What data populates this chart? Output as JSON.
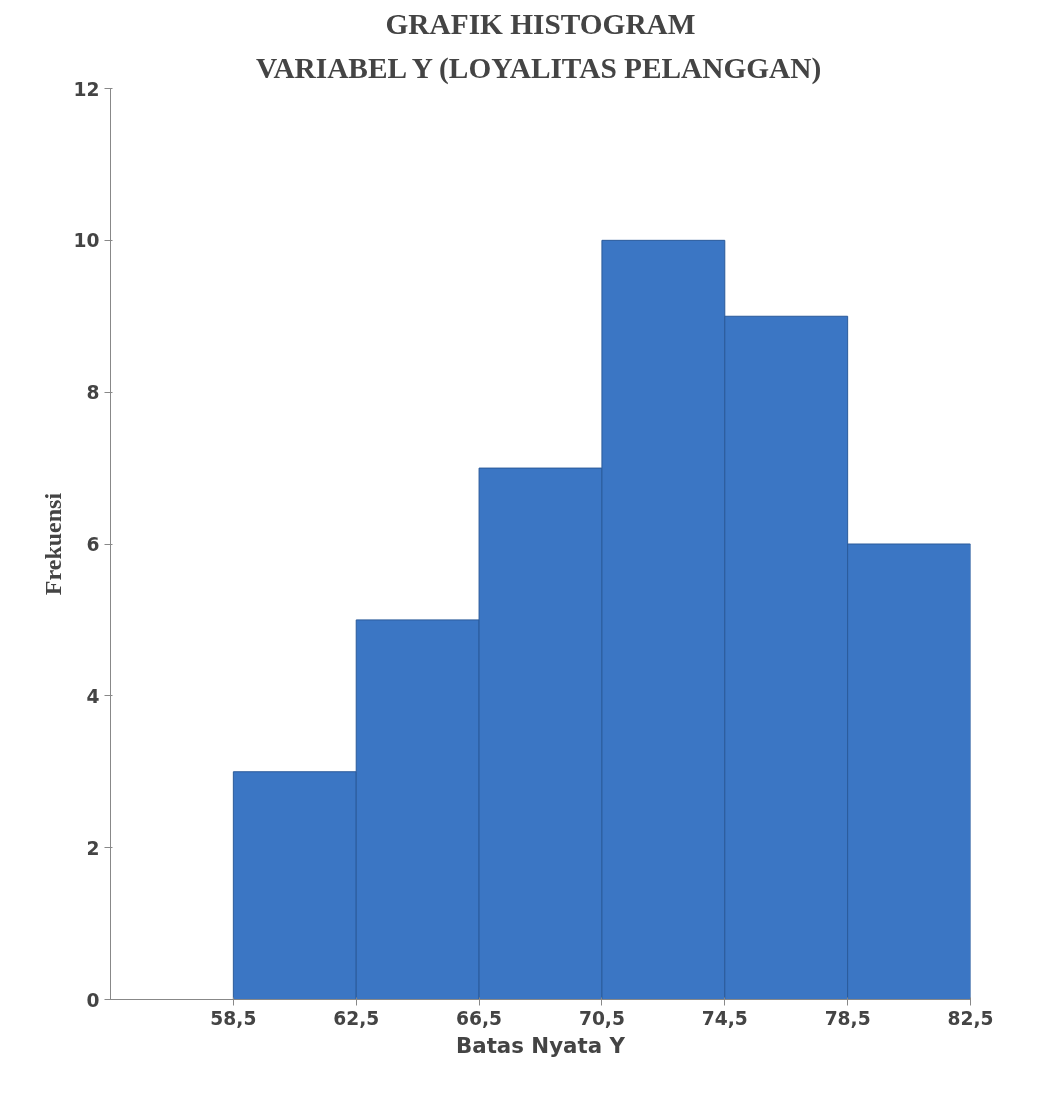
{
  "chart_data": {
    "type": "histogram",
    "title": "GRAFIK HISTOGRAM",
    "subtitle": "VARIABEL Y (LOYALITAS PELANGGAN)",
    "xlabel": "Batas Nyata Y",
    "ylabel": "Frekuensi",
    "bins": [
      58.5,
      62.5,
      66.5,
      70.5,
      74.5,
      78.5,
      82.5
    ],
    "values": [
      3,
      5,
      7,
      10,
      9,
      6
    ],
    "color": "#3b76c4",
    "xlim": [
      54.5,
      82.5
    ],
    "xticks": [
      {
        "value": 58.5,
        "label": "58,5"
      },
      {
        "value": 62.5,
        "label": "62,5"
      },
      {
        "value": 66.5,
        "label": "66,5"
      },
      {
        "value": 70.5,
        "label": "70,5"
      },
      {
        "value": 74.5,
        "label": "74,5"
      },
      {
        "value": 78.5,
        "label": "78,5"
      },
      {
        "value": 82.5,
        "label": "82,5"
      }
    ],
    "ylim": [
      0,
      12
    ],
    "yticks": [
      0,
      2,
      4,
      6,
      8,
      10,
      12
    ],
    "grid": false
  }
}
